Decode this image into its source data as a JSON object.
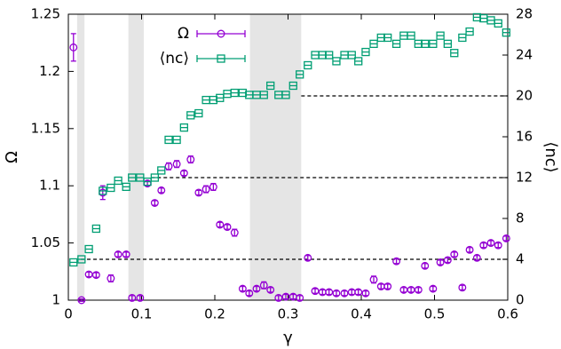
{
  "chart_data": {
    "type": "scatter",
    "xlabel": "γ",
    "ylabel": "Ω",
    "y2label": "⟨nc⟩",
    "xlim": [
      0,
      0.6
    ],
    "xticks": [
      0,
      0.1,
      0.2,
      0.3,
      0.4,
      0.5,
      0.6
    ],
    "ylim": [
      1,
      1.25
    ],
    "yticks": [
      1,
      1.05,
      1.1,
      1.15,
      1.2,
      1.25
    ],
    "y2lim": [
      0,
      28
    ],
    "y2ticks": [
      0,
      4,
      8,
      12,
      16,
      20,
      24,
      28
    ],
    "legend": "top-center",
    "shaded_regions": [
      [
        0.012,
        0.022
      ],
      [
        0.082,
        0.103
      ],
      [
        0.248,
        0.318
      ]
    ],
    "reference_lines": [
      {
        "y2": 20,
        "x_start": 0.318
      },
      {
        "y2": 12,
        "x_start": 0.113
      },
      {
        "y2": 4,
        "x_start": 0.017
      }
    ],
    "x": [
      0.007,
      0.018,
      0.028,
      0.038,
      0.047,
      0.058,
      0.068,
      0.079,
      0.087,
      0.098,
      0.108,
      0.118,
      0.127,
      0.137,
      0.148,
      0.158,
      0.167,
      0.178,
      0.188,
      0.198,
      0.207,
      0.217,
      0.227,
      0.238,
      0.247,
      0.257,
      0.267,
      0.276,
      0.287,
      0.297,
      0.307,
      0.316,
      0.327,
      0.337,
      0.347,
      0.356,
      0.366,
      0.377,
      0.387,
      0.396,
      0.406,
      0.417,
      0.427,
      0.436,
      0.448,
      0.458,
      0.468,
      0.478,
      0.487,
      0.498,
      0.508,
      0.518,
      0.527,
      0.538,
      0.548,
      0.558,
      0.567,
      0.577,
      0.587,
      0.598
    ],
    "series": [
      {
        "name": "Ω",
        "color": "#9400d3",
        "marker": "circle",
        "values": [
          1.221,
          1.0,
          1.0225,
          1.022,
          1.094,
          1.019,
          1.04,
          1.04,
          1.002,
          1.002,
          1.102,
          1.085,
          1.096,
          1.117,
          1.119,
          1.111,
          1.123,
          1.094,
          1.097,
          1.099,
          1.066,
          1.064,
          1.059,
          1.01,
          1.006,
          1.01,
          1.013,
          1.009,
          1.002,
          1.003,
          1.003,
          1.002,
          1.037,
          1.008,
          1.007,
          1.007,
          1.006,
          1.006,
          1.007,
          1.007,
          1.006,
          1.018,
          1.012,
          1.012,
          1.034,
          1.009,
          1.009,
          1.009,
          1.03,
          1.01,
          1.033,
          1.035,
          1.04,
          1.011,
          1.044,
          1.037,
          1.048,
          1.05,
          1.048,
          1.054
        ],
        "errors": [
          0.012,
          0.001,
          0.002,
          0.002,
          0.006,
          0.003,
          0.002,
          0.002,
          0.002,
          0.002,
          0.002,
          0.002,
          0.002,
          0.003,
          0.003,
          0.002,
          0.003,
          0.002,
          0.003,
          0.003,
          0.002,
          0.002,
          0.003,
          0.002,
          0.002,
          0.002,
          0.003,
          0.002,
          0.002,
          0.002,
          0.002,
          0.002,
          0.002,
          0.002,
          0.002,
          0.002,
          0.002,
          0.002,
          0.002,
          0.002,
          0.002,
          0.003,
          0.002,
          0.002,
          0.002,
          0.002,
          0.002,
          0.002,
          0.002,
          0.002,
          0.002,
          0.002,
          0.002,
          0.002,
          0.002,
          0.002,
          0.002,
          0.002,
          0.002,
          0.002
        ]
      },
      {
        "name": "⟨nc⟩",
        "color": "#009e73",
        "marker": "square",
        "axis": "y2",
        "values": [
          3.7,
          4.0,
          5.0,
          7.0,
          10.7,
          11.0,
          11.7,
          11.1,
          12.0,
          12.0,
          11.6,
          12.0,
          12.7,
          15.7,
          15.7,
          16.9,
          18.1,
          18.3,
          19.6,
          19.6,
          19.8,
          20.2,
          20.3,
          20.3,
          20.1,
          20.1,
          20.1,
          21.0,
          20.1,
          20.1,
          21.0,
          22.1,
          23.0,
          24.0,
          24.0,
          24.0,
          23.4,
          24.0,
          24.0,
          23.4,
          24.3,
          25.1,
          25.7,
          25.7,
          25.1,
          25.9,
          25.9,
          25.1,
          25.1,
          25.1,
          25.9,
          25.1,
          24.2,
          25.7,
          26.3,
          27.7,
          27.6,
          27.4,
          27.1,
          26.2
        ]
      }
    ]
  }
}
